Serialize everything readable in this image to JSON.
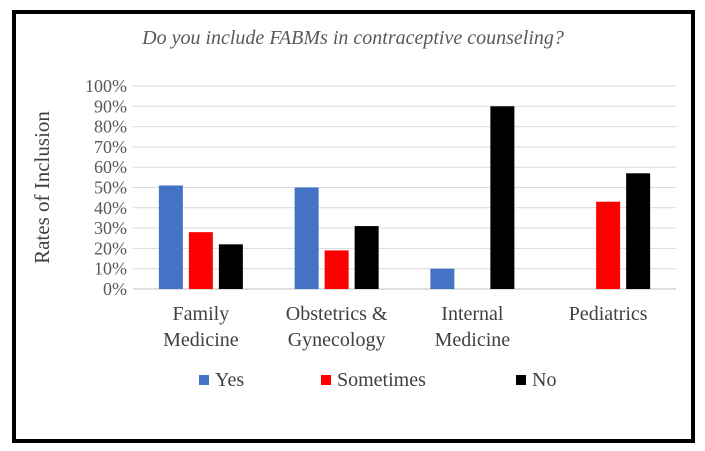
{
  "chart_data": {
    "type": "bar",
    "title": "Do you include FABMs in contraceptive counseling?",
    "xlabel": "",
    "ylabel": "Rates of Inclusion",
    "ylim": [
      0,
      100
    ],
    "y_ticks": [
      "0%",
      "10%",
      "20%",
      "30%",
      "40%",
      "50%",
      "60%",
      "70%",
      "80%",
      "90%",
      "100%"
    ],
    "categories": [
      [
        "Family",
        "Medicine"
      ],
      [
        "Obstetrics &",
        "Gynecology"
      ],
      [
        "Internal",
        "Medicine"
      ],
      [
        "Pediatrics"
      ]
    ],
    "series": [
      {
        "name": "Yes",
        "color": "#4472c4",
        "values": [
          51,
          50,
          10,
          0
        ]
      },
      {
        "name": "Sometimes",
        "color": "#ff0000",
        "values": [
          28,
          19,
          0,
          43
        ]
      },
      {
        "name": "No",
        "color": "#000000",
        "values": [
          22,
          31,
          90,
          57
        ]
      }
    ],
    "grid": true,
    "legend": "bottom"
  }
}
